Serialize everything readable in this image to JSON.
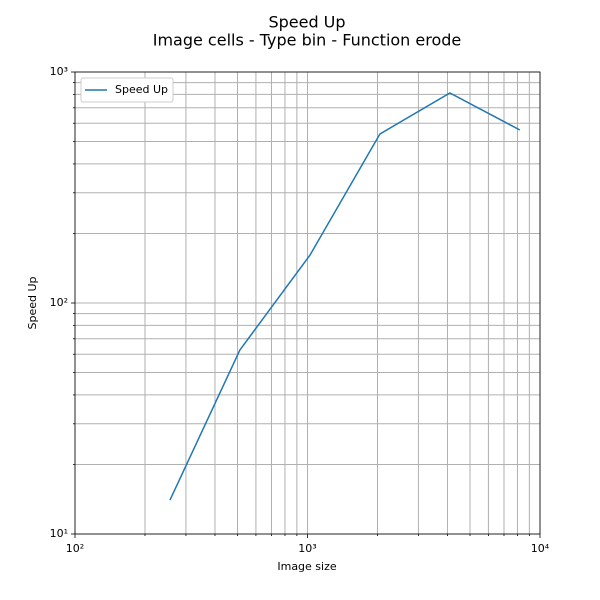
{
  "chart_data": {
    "type": "line",
    "title": "Speed Up",
    "subtitle": "Image cells - Type bin - Function erode",
    "x_label": "Image size",
    "y_label": "Speed Up",
    "x": [
      256,
      512,
      1024,
      2048,
      4096,
      8192
    ],
    "series": [
      {
        "name": "Speed Up",
        "color": "#1f77b4",
        "values": [
          14,
          62.6,
          161,
          539,
          811,
          561
        ]
      }
    ],
    "xscale": "log",
    "yscale": "log",
    "xlim": [
      100,
      10000
    ],
    "ylim": [
      10,
      1000
    ],
    "xticks": [
      {
        "value": 100,
        "label": "10²"
      },
      {
        "value": 1000,
        "label": "10³"
      },
      {
        "value": 10000,
        "label": "10⁴"
      }
    ],
    "yticks": [
      {
        "value": 10,
        "label": "10¹"
      },
      {
        "value": 100,
        "label": "10²"
      },
      {
        "value": 1000,
        "label": "10³"
      }
    ],
    "xminorticks": [
      200,
      300,
      400,
      500,
      600,
      700,
      800,
      900,
      2000,
      3000,
      4000,
      5000,
      6000,
      7000,
      8000,
      9000
    ],
    "yminorticks": [
      20,
      30,
      40,
      50,
      60,
      70,
      80,
      90,
      200,
      300,
      400,
      500,
      600,
      700,
      800,
      900
    ],
    "grid": true,
    "legend": "upper left"
  }
}
